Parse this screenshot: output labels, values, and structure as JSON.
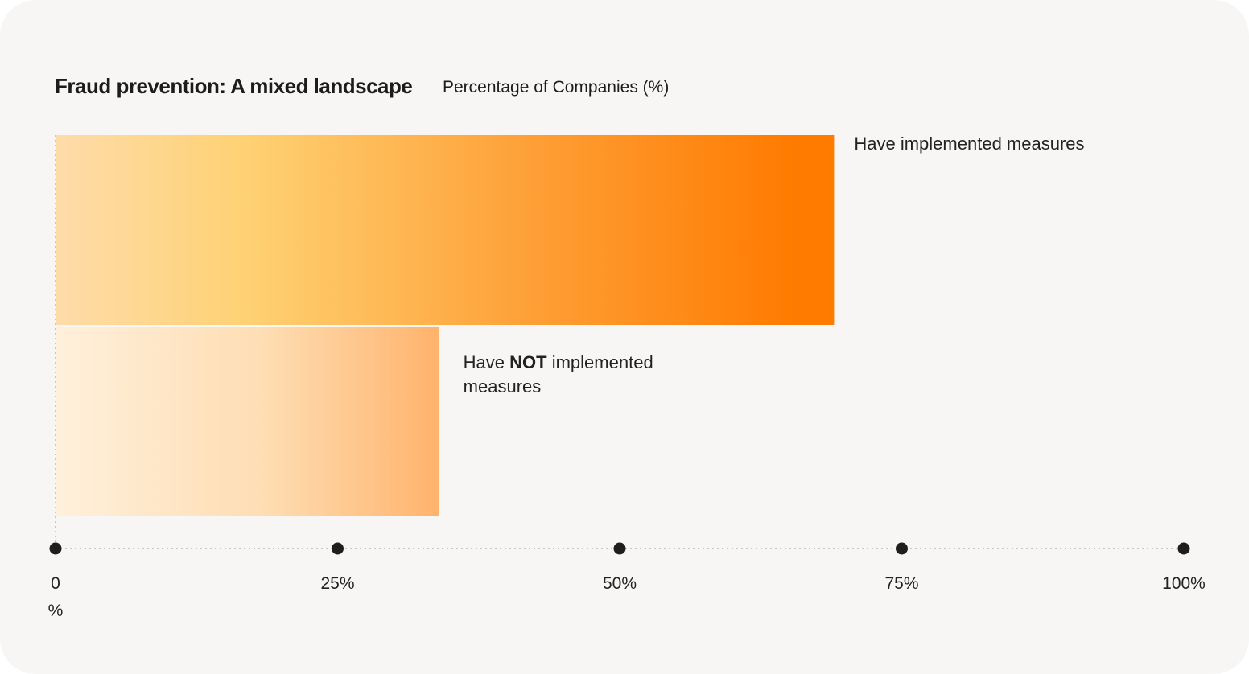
{
  "chart_data": {
    "type": "bar",
    "orientation": "horizontal",
    "title": "Fraud prevention: A mixed landscape",
    "subtitle": "Percentage of Companies (%)",
    "categories": [
      "Have implemented measures",
      "Have NOT implemented measures"
    ],
    "label_parts": [
      [
        "Have implemented measures"
      ],
      [
        "Have ",
        "NOT",
        " implemented",
        "measures"
      ]
    ],
    "values": [
      69,
      34
    ],
    "xlim": [
      0,
      100
    ],
    "ticks": [
      0,
      25,
      50,
      75,
      100
    ],
    "tick_labels": [
      [
        "0",
        "%"
      ],
      [
        "25%"
      ],
      [
        "50%"
      ],
      [
        "75%"
      ],
      [
        "100%"
      ]
    ],
    "grid": false,
    "colors": {
      "bar1": [
        "#fedcaa",
        "#fed172",
        "#fe9e35",
        "#ff7b00"
      ],
      "bar2": [
        "#fff0dc",
        "#feddb2",
        "#ffb36c"
      ],
      "axis": "#b8b6b3",
      "marker": "#1e1e1e"
    }
  }
}
